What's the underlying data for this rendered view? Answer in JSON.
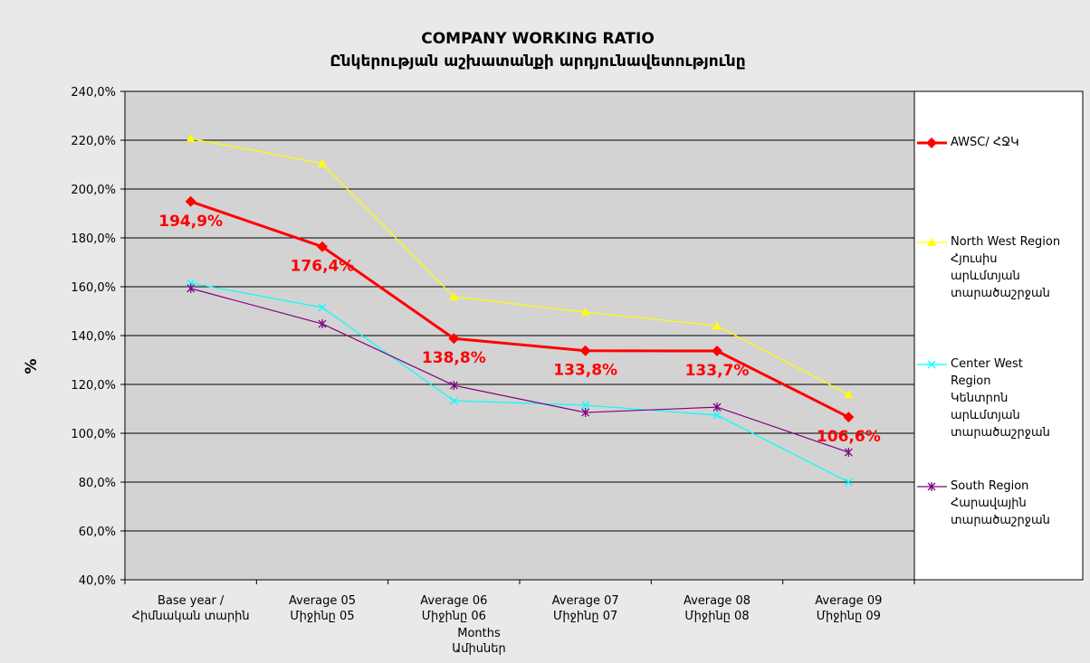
{
  "chart_data": {
    "type": "line",
    "title": "COMPANY  WORKING  RATIO",
    "subtitle": "Ընկերության աշխատանքի արդյունավետությունը",
    "y_label": "%",
    "x_label": "Months\nԱմիսներ",
    "categories": [
      "Base year /\nՀիմնական տարին",
      "Average 05\nՄիջինը 05",
      "Average 06\nՄիջինը 06",
      "Average 07\nՄիջինը 07",
      "Average 08\nՄիջինը 08",
      "Average 09\nՄիջինը 09"
    ],
    "ylim": [
      40,
      240
    ],
    "yticks": [
      {
        "value": 40,
        "label": "40,0%"
      },
      {
        "value": 60,
        "label": "60,0%"
      },
      {
        "value": 80,
        "label": "80,0%"
      },
      {
        "value": 100,
        "label": "100,0%"
      },
      {
        "value": 120,
        "label": "120,0%"
      },
      {
        "value": 140,
        "label": "140,0%"
      },
      {
        "value": 160,
        "label": "160,0%"
      },
      {
        "value": 180,
        "label": "180,0%"
      },
      {
        "value": 200,
        "label": "200,0%"
      },
      {
        "value": 220,
        "label": "220,0%"
      },
      {
        "value": 240,
        "label": "240,0%"
      }
    ],
    "grid": true,
    "legend": "right",
    "series": [
      {
        "name": "AWSC/ ՀՋԿ",
        "color": "#ff0000",
        "marker": "diamond",
        "values": [
          194.9,
          176.4,
          138.8,
          133.8,
          133.7,
          106.6
        ],
        "value_labels": [
          "194,9%",
          "176,4%",
          "138,8%",
          "133,8%",
          "133,7%",
          "106,6%"
        ]
      },
      {
        "name": "North West Region\nՀյուսիս\nարևմտյան\nտարածաշրջան",
        "color": "#ffff00",
        "marker": "triangle",
        "values": [
          220.7,
          210.4,
          155.9,
          149.6,
          144,
          115.9
        ]
      },
      {
        "name": "Center West\nRegion\nԿենտրոն\nարևմտյան\nտարածաշրջան",
        "color": "#00ffff",
        "marker": "x",
        "values": [
          161.5,
          151.5,
          113.3,
          111.5,
          107.4,
          80
        ]
      },
      {
        "name": "South Region\nՀարավային\nտարածաշրջան",
        "color": "#800080",
        "marker": "star",
        "values": [
          159.3,
          144.8,
          119.6,
          108.5,
          110.7,
          92.2
        ]
      }
    ]
  }
}
